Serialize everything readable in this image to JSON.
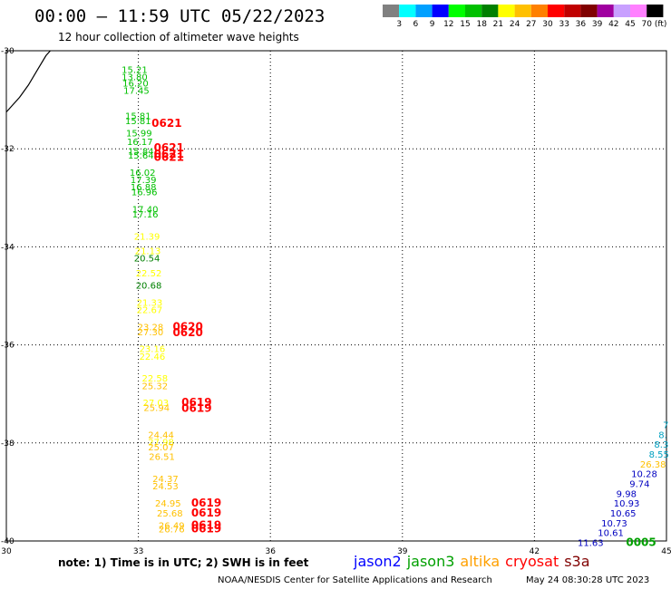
{
  "header": {
    "title": "00:00 – 11:59 UTC 05/22/2023",
    "subtitle": "12 hour collection of altimeter wave heights"
  },
  "legend": {
    "unit": "(ft)",
    "bins": [
      {
        "label": "3",
        "color": "#808080"
      },
      {
        "label": "6",
        "color": "#00ffff"
      },
      {
        "label": "9",
        "color": "#00a0ff"
      },
      {
        "label": "12",
        "color": "#0000ff"
      },
      {
        "label": "15",
        "color": "#00ff00"
      },
      {
        "label": "18",
        "color": "#00c000"
      },
      {
        "label": "21",
        "color": "#008000"
      },
      {
        "label": "24",
        "color": "#ffff00"
      },
      {
        "label": "27",
        "color": "#ffc000"
      },
      {
        "label": "30",
        "color": "#ff8000"
      },
      {
        "label": "33",
        "color": "#ff0000"
      },
      {
        "label": "36",
        "color": "#c00000"
      },
      {
        "label": "39",
        "color": "#800000"
      },
      {
        "label": "42",
        "color": "#a000a0"
      },
      {
        "label": "45",
        "color": "#c8a0ff"
      },
      {
        "label": "70",
        "color": "#ff80ff"
      },
      {
        "label": "",
        "color": "#000000"
      }
    ]
  },
  "map": {
    "x_ticks": [
      "30",
      "33",
      "36",
      "39",
      "42",
      "45"
    ],
    "y_ticks": [
      "-30",
      "-32",
      "-34",
      "-36",
      "-38",
      "-40"
    ],
    "observations": [
      {
        "text": "15.21",
        "lon": 32.62,
        "lat": -30.45,
        "color": "#00c000"
      },
      {
        "text": "13.80",
        "lon": 32.62,
        "lat": -30.6,
        "color": "#00c000"
      },
      {
        "text": "16.20",
        "lon": 32.64,
        "lat": -30.73,
        "color": "#00c000"
      },
      {
        "text": "17.45",
        "lon": 32.66,
        "lat": -30.88,
        "color": "#00c000"
      },
      {
        "text": "15.81",
        "lon": 32.7,
        "lat": -31.4,
        "color": "#00c000"
      },
      {
        "text": "15.81",
        "lon": 32.7,
        "lat": -31.5,
        "color": "#00c000"
      },
      {
        "text": "15.99",
        "lon": 32.72,
        "lat": -31.75,
        "color": "#00c000"
      },
      {
        "text": "16.17",
        "lon": 32.74,
        "lat": -31.92,
        "color": "#00c000"
      },
      {
        "text": "15.84",
        "lon": 32.76,
        "lat": -32.12,
        "color": "#00c000"
      },
      {
        "text": "15.64",
        "lon": 32.76,
        "lat": -32.2,
        "color": "#00c000"
      },
      {
        "text": "16.02",
        "lon": 32.8,
        "lat": -32.55,
        "color": "#00c000"
      },
      {
        "text": "17.39",
        "lon": 32.82,
        "lat": -32.7,
        "color": "#00c000"
      },
      {
        "text": "16.88",
        "lon": 32.82,
        "lat": -32.85,
        "color": "#00c000"
      },
      {
        "text": "16.96",
        "lon": 32.84,
        "lat": -32.95,
        "color": "#00c000"
      },
      {
        "text": "17.40",
        "lon": 32.86,
        "lat": -33.3,
        "color": "#00c000"
      },
      {
        "text": "17.16",
        "lon": 32.86,
        "lat": -33.4,
        "color": "#00c000"
      },
      {
        "text": "21.39",
        "lon": 32.9,
        "lat": -33.85,
        "color": "#ffff00"
      },
      {
        "text": "21.13",
        "lon": 32.92,
        "lat": -34.15,
        "color": "#ffff00"
      },
      {
        "text": "20.54",
        "lon": 32.9,
        "lat": -34.3,
        "color": "#008000"
      },
      {
        "text": "22.52",
        "lon": 32.94,
        "lat": -34.6,
        "color": "#ffff00"
      },
      {
        "text": "20.68",
        "lon": 32.94,
        "lat": -34.85,
        "color": "#008000"
      },
      {
        "text": "21.33",
        "lon": 32.96,
        "lat": -35.2,
        "color": "#ffff00"
      },
      {
        "text": "22.67",
        "lon": 32.96,
        "lat": -35.35,
        "color": "#ffff00"
      },
      {
        "text": "23.28",
        "lon": 32.98,
        "lat": -35.7,
        "color": "#ffc000"
      },
      {
        "text": "27.30",
        "lon": 32.98,
        "lat": -35.8,
        "color": "#ffc000"
      },
      {
        "text": "23.16",
        "lon": 33.02,
        "lat": -36.15,
        "color": "#ffff00"
      },
      {
        "text": "22.46",
        "lon": 33.02,
        "lat": -36.3,
        "color": "#ffff00"
      },
      {
        "text": "22.58",
        "lon": 33.08,
        "lat": -36.75,
        "color": "#ffff00"
      },
      {
        "text": "25.32",
        "lon": 33.08,
        "lat": -36.9,
        "color": "#ffc000"
      },
      {
        "text": "27.03",
        "lon": 33.1,
        "lat": -37.25,
        "color": "#ffff00"
      },
      {
        "text": "25.94",
        "lon": 33.12,
        "lat": -37.35,
        "color": "#ffc000"
      },
      {
        "text": "24.44",
        "lon": 33.22,
        "lat": -37.9,
        "color": "#ffc000"
      },
      {
        "text": "27.98",
        "lon": 33.22,
        "lat": -38.05,
        "color": "#ffff00"
      },
      {
        "text": "25.07",
        "lon": 33.22,
        "lat": -38.15,
        "color": "#ffc000"
      },
      {
        "text": "26.51",
        "lon": 33.24,
        "lat": -38.35,
        "color": "#ffc000"
      },
      {
        "text": "24.37",
        "lon": 33.32,
        "lat": -38.8,
        "color": "#ffc000"
      },
      {
        "text": "24.53",
        "lon": 33.32,
        "lat": -38.95,
        "color": "#ffc000"
      },
      {
        "text": "24.95",
        "lon": 33.38,
        "lat": -39.3,
        "color": "#ffc000"
      },
      {
        "text": "25.68",
        "lon": 33.42,
        "lat": -39.5,
        "color": "#ffc000"
      },
      {
        "text": "26.49",
        "lon": 33.46,
        "lat": -39.75,
        "color": "#ffc000"
      },
      {
        "text": "26.76",
        "lon": 33.46,
        "lat": -39.82,
        "color": "#ffc000"
      },
      {
        "text": "7",
        "lon": 44.92,
        "lat": -37.7,
        "color": "#00a0c0"
      },
      {
        "text": "8.",
        "lon": 44.82,
        "lat": -37.9,
        "color": "#00a0c0"
      },
      {
        "text": "8.3",
        "lon": 44.72,
        "lat": -38.1,
        "color": "#00a0c0"
      },
      {
        "text": "8.55",
        "lon": 44.6,
        "lat": -38.3,
        "color": "#00a0c0"
      },
      {
        "text": "26.38",
        "lon": 44.4,
        "lat": -38.5,
        "color": "#ffc000"
      },
      {
        "text": "10.28",
        "lon": 44.2,
        "lat": -38.7,
        "color": "#0000c0"
      },
      {
        "text": "9.74",
        "lon": 44.16,
        "lat": -38.9,
        "color": "#0000c0"
      },
      {
        "text": "9.98",
        "lon": 43.86,
        "lat": -39.1,
        "color": "#0000c0"
      },
      {
        "text": "10.93",
        "lon": 43.8,
        "lat": -39.3,
        "color": "#0000c0"
      },
      {
        "text": "10.65",
        "lon": 43.72,
        "lat": -39.5,
        "color": "#0000c0"
      },
      {
        "text": "10.73",
        "lon": 43.52,
        "lat": -39.7,
        "color": "#0000c0"
      },
      {
        "text": "10.61",
        "lon": 43.44,
        "lat": -39.9,
        "color": "#0000c0"
      },
      {
        "text": "11.63",
        "lon": 42.98,
        "lat": -40.1,
        "color": "#0000c0"
      }
    ],
    "passes": [
      {
        "text": "0621",
        "lon": 33.3,
        "lat": -31.55,
        "color": "#ff0000"
      },
      {
        "text": "0621",
        "lon": 33.35,
        "lat": -32.05,
        "color": "#ff0000"
      },
      {
        "text": "0621",
        "lon": 33.35,
        "lat": -32.18,
        "color": "#ff0000"
      },
      {
        "text": "0621",
        "lon": 33.35,
        "lat": -32.25,
        "color": "#ff0000"
      },
      {
        "text": "0620",
        "lon": 33.78,
        "lat": -35.7,
        "color": "#ff0000"
      },
      {
        "text": "0620",
        "lon": 33.78,
        "lat": -35.82,
        "color": "#ff0000"
      },
      {
        "text": "0619",
        "lon": 33.98,
        "lat": -37.25,
        "color": "#ff0000"
      },
      {
        "text": "0619",
        "lon": 33.98,
        "lat": -37.37,
        "color": "#ff0000"
      },
      {
        "text": "0619",
        "lon": 34.2,
        "lat": -39.3,
        "color": "#ff0000"
      },
      {
        "text": "0619",
        "lon": 34.2,
        "lat": -39.5,
        "color": "#ff0000"
      },
      {
        "text": "0619",
        "lon": 34.2,
        "lat": -39.75,
        "color": "#ff0000"
      },
      {
        "text": "0619",
        "lon": 34.2,
        "lat": -39.82,
        "color": "#ff0000"
      },
      {
        "text": "0005",
        "lon": 44.08,
        "lat": -40.1,
        "color": "#00a000"
      }
    ],
    "coastline": [
      [
        30.0,
        -31.25
      ],
      [
        30.3,
        -30.95
      ],
      [
        30.5,
        -30.7
      ],
      [
        30.7,
        -30.4
      ],
      [
        30.9,
        -30.1
      ],
      [
        31.0,
        -30.0
      ]
    ]
  },
  "footer": {
    "note": "note: 1) Time is in UTC; 2) SWH is in feet",
    "satellites": [
      {
        "name": "jason2",
        "color": "#0000ff"
      },
      {
        "name": "jason3",
        "color": "#00a000"
      },
      {
        "name": "altika",
        "color": "#ffa000"
      },
      {
        "name": "cryosat",
        "color": "#ff0000"
      },
      {
        "name": "s3a",
        "color": "#800000"
      }
    ],
    "credit": "NOAA/NESDIS Center for Satellite Applications and Research",
    "timestamp": "May 24 08:30:28 UTC 2023"
  }
}
